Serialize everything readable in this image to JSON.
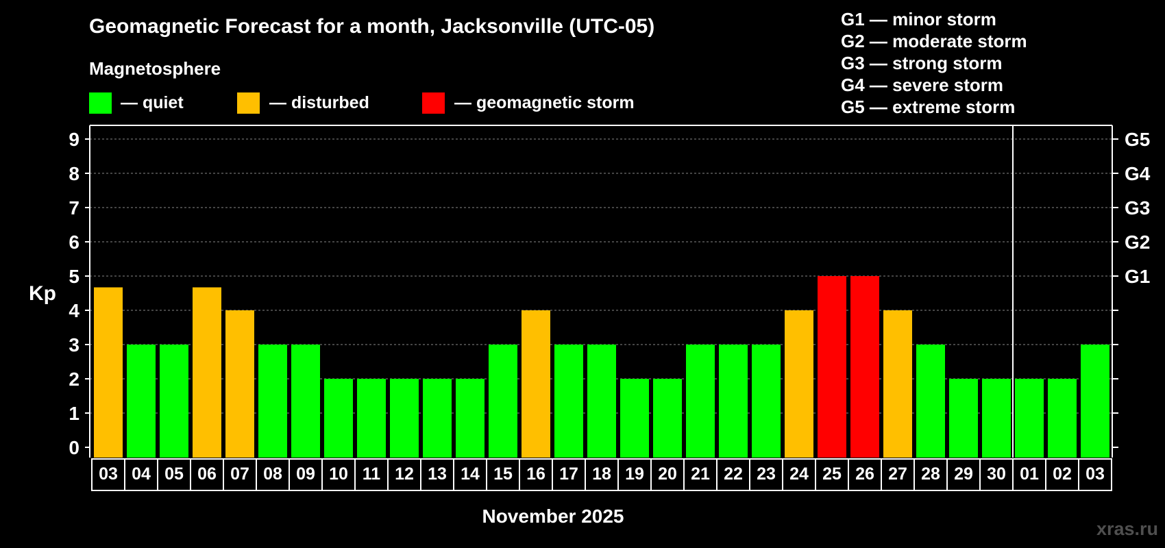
{
  "chart_data": {
    "type": "bar",
    "title": "Geomagnetic Forecast for a month, Jacksonville (UTC-05)",
    "subtitle": "Magnetosphere",
    "legend": [
      {
        "label": "— quiet",
        "color": "#00ff00"
      },
      {
        "label": "— disturbed",
        "color": "#ffbf00"
      },
      {
        "label": "— geomagnetic storm",
        "color": "#ff0000"
      }
    ],
    "storm_scale": [
      "G1 — minor storm",
      "G2 — moderate storm",
      "G3 — strong storm",
      "G4 — severe storm",
      "G5 — extreme storm"
    ],
    "ylabel": "Kp",
    "xlabel": "November 2025",
    "ylim": [
      0,
      9
    ],
    "yticks": [
      0,
      1,
      2,
      3,
      4,
      5,
      6,
      7,
      8,
      9
    ],
    "right_axis_labels": [
      {
        "kp": 5,
        "label": "G1"
      },
      {
        "kp": 6,
        "label": "G2"
      },
      {
        "kp": 7,
        "label": "G3"
      },
      {
        "kp": 8,
        "label": "G4"
      },
      {
        "kp": 9,
        "label": "G5"
      }
    ],
    "categories": [
      "03",
      "04",
      "05",
      "06",
      "07",
      "08",
      "09",
      "10",
      "11",
      "12",
      "13",
      "14",
      "15",
      "16",
      "17",
      "18",
      "19",
      "20",
      "21",
      "22",
      "23",
      "24",
      "25",
      "26",
      "27",
      "28",
      "29",
      "30",
      "01",
      "02",
      "03"
    ],
    "values": [
      4.67,
      3,
      3,
      4.67,
      4,
      3,
      3,
      2,
      2,
      2,
      2,
      2,
      3,
      4,
      3,
      3,
      2,
      2,
      3,
      3,
      3,
      4,
      5,
      5,
      4,
      3,
      2,
      2,
      2,
      2,
      3
    ],
    "status": [
      "disturbed",
      "quiet",
      "quiet",
      "disturbed",
      "disturbed",
      "quiet",
      "quiet",
      "quiet",
      "quiet",
      "quiet",
      "quiet",
      "quiet",
      "quiet",
      "disturbed",
      "quiet",
      "quiet",
      "quiet",
      "quiet",
      "quiet",
      "quiet",
      "quiet",
      "disturbed",
      "storm",
      "storm",
      "disturbed",
      "quiet",
      "quiet",
      "quiet",
      "quiet",
      "quiet",
      "quiet"
    ],
    "status_colors": {
      "quiet": "#00ff00",
      "disturbed": "#ffbf00",
      "storm": "#ff0000"
    },
    "month_break_after_index": 27,
    "grid": "dashed horizontal"
  },
  "watermark": "xras.ru"
}
